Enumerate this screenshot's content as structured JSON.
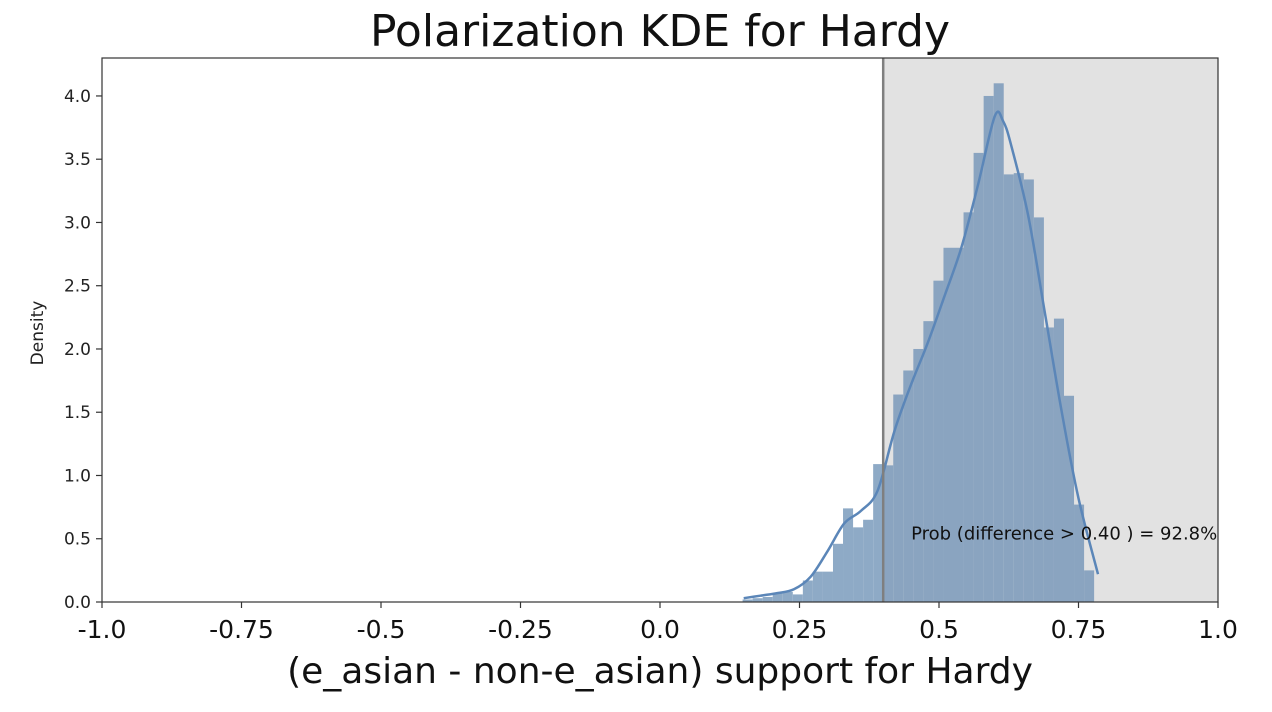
{
  "chart_data": {
    "type": "histogram",
    "title": "Polarization KDE for Hardy",
    "xlabel": "(e_asian - non-e_asian) support for Hardy",
    "ylabel": "Density",
    "xlim": [
      -1.0,
      1.0
    ],
    "ylim": [
      0,
      4.3
    ],
    "xticks": [
      "-1.0",
      "-0.75",
      "-0.5",
      "-0.25",
      "0.0",
      "0.25",
      "0.5",
      "0.75",
      "1.0"
    ],
    "yticks": [
      "0.0",
      "0.5",
      "1.0",
      "1.5",
      "2.0",
      "2.5",
      "3.0",
      "3.5",
      "4.0"
    ],
    "threshold": 0.4,
    "shaded_region": [
      0.4,
      1.0
    ],
    "annotation": "Prob (difference > 0.40 ) = 92.8%",
    "histogram": {
      "bin_edges": [
        0.148,
        0.166,
        0.184,
        0.202,
        0.22,
        0.238,
        0.256,
        0.274,
        0.292,
        0.31,
        0.328,
        0.346,
        0.364,
        0.382,
        0.4,
        0.418,
        0.436,
        0.454,
        0.472,
        0.49,
        0.508,
        0.526,
        0.544,
        0.562,
        0.58,
        0.598,
        0.616,
        0.634,
        0.652,
        0.67,
        0.688,
        0.706,
        0.724,
        0.742,
        0.76,
        0.778
      ],
      "density": [
        0.02,
        0.03,
        0.04,
        0.07,
        0.08,
        0.06,
        0.17,
        0.24,
        0.24,
        0.46,
        0.74,
        0.59,
        0.65,
        1.09,
        1.08,
        1.64,
        1.83,
        2.0,
        2.22,
        2.54,
        2.8,
        2.8,
        3.08,
        3.55,
        4.0,
        4.1,
        3.38,
        3.39,
        3.34,
        3.04,
        2.17,
        2.24,
        1.63,
        0.77,
        0.25
      ]
    },
    "kde": {
      "x": [
        0.15,
        0.18,
        0.21,
        0.24,
        0.27,
        0.3,
        0.33,
        0.36,
        0.39,
        0.42,
        0.45,
        0.48,
        0.51,
        0.54,
        0.57,
        0.6,
        0.615,
        0.63,
        0.66,
        0.69,
        0.72,
        0.75,
        0.785
      ],
      "y": [
        0.03,
        0.05,
        0.07,
        0.1,
        0.2,
        0.4,
        0.62,
        0.72,
        0.88,
        1.35,
        1.72,
        2.05,
        2.42,
        2.8,
        3.3,
        3.84,
        3.8,
        3.6,
        3.05,
        2.28,
        1.5,
        0.82,
        0.22
      ]
    },
    "colors": {
      "bar": "#8eaac6",
      "bar_right": "#8aa4c0",
      "kde": "#5b86b8",
      "threshold": "#7f7f7f",
      "shade": "#e2e2e2"
    },
    "grid": false,
    "legend": false
  }
}
